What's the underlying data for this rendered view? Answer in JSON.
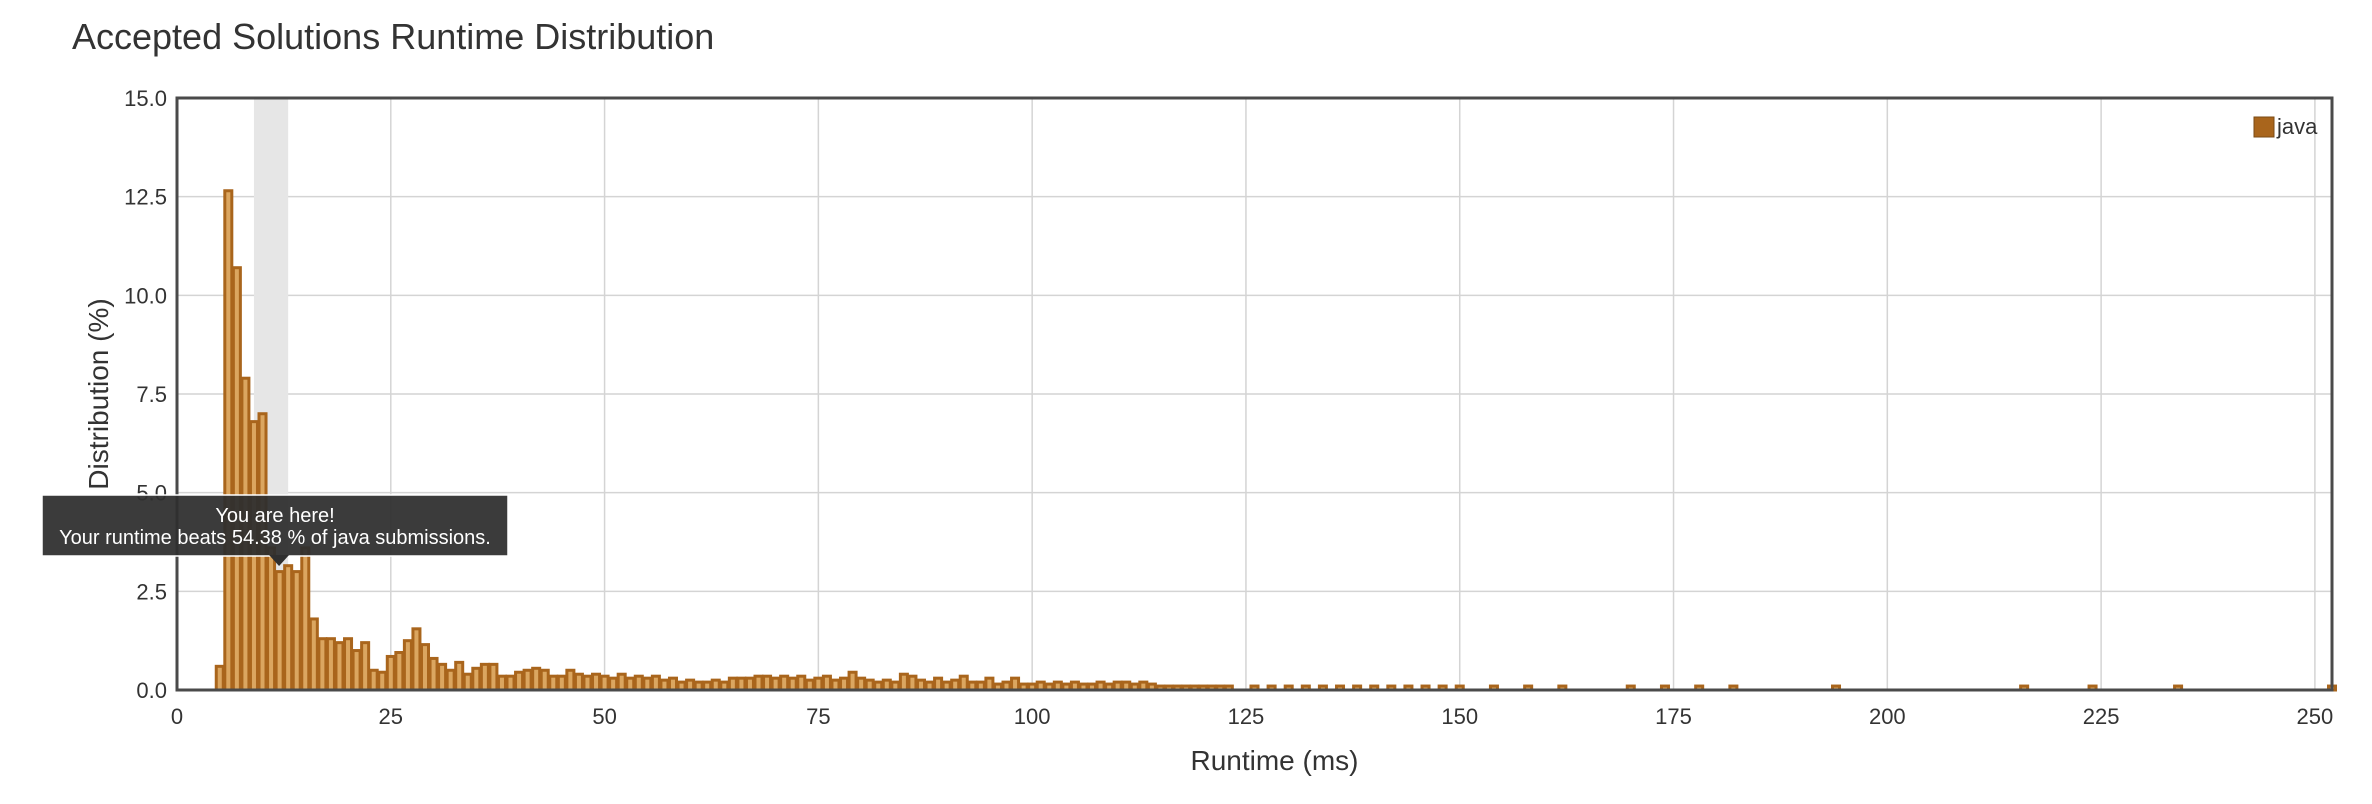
{
  "page": {
    "title": "Accepted Solutions Runtime Distribution"
  },
  "chart_data": {
    "type": "bar",
    "title": "Accepted Solutions Runtime Distribution",
    "xlabel": "Runtime (ms)",
    "ylabel": "Distribution (%)",
    "xlim": [
      0,
      252
    ],
    "ylim": [
      0,
      15
    ],
    "xticks": [
      0,
      25,
      50,
      75,
      100,
      125,
      150,
      175,
      200,
      225,
      250
    ],
    "yticks": [
      "0.0",
      "2.5",
      "5.0",
      "7.5",
      "10.0",
      "12.5",
      "15.0"
    ],
    "grid": true,
    "legend": {
      "position": "top-right",
      "entries": [
        "java"
      ]
    },
    "colors": {
      "bar_fill": "#dba660",
      "bar_stroke": "#a9651c",
      "highlight_band": "#e6e6e6",
      "grid": "#d4d4d4",
      "frame": "#4a4a4a",
      "tooltip_bg": "#2f2f2f"
    },
    "highlight": {
      "x_range": [
        9,
        13
      ]
    },
    "tooltip": {
      "line1": "You are here!",
      "line2": "Your runtime beats 54.38 % of java submissions.",
      "percent": 54.38
    },
    "series": [
      {
        "name": "java",
        "x": [
          5,
          6,
          7,
          8,
          9,
          10,
          11,
          12,
          13,
          14,
          15,
          16,
          17,
          18,
          19,
          20,
          21,
          22,
          23,
          24,
          25,
          26,
          27,
          28,
          29,
          30,
          31,
          32,
          33,
          34,
          35,
          36,
          37,
          38,
          39,
          40,
          41,
          42,
          43,
          44,
          45,
          46,
          47,
          48,
          49,
          50,
          51,
          52,
          53,
          54,
          55,
          56,
          57,
          58,
          59,
          60,
          61,
          62,
          63,
          64,
          65,
          66,
          67,
          68,
          69,
          70,
          71,
          72,
          73,
          74,
          75,
          76,
          77,
          78,
          79,
          80,
          81,
          82,
          83,
          84,
          85,
          86,
          87,
          88,
          89,
          90,
          91,
          92,
          93,
          94,
          95,
          96,
          97,
          98,
          99,
          100,
          101,
          102,
          103,
          104,
          105,
          106,
          107,
          108,
          109,
          110,
          111,
          112,
          113,
          114,
          115,
          116,
          117,
          118,
          119,
          120,
          121,
          122,
          123,
          126,
          128,
          130,
          132,
          134,
          136,
          138,
          140,
          142,
          144,
          146,
          148,
          150,
          154,
          158,
          162,
          170,
          174,
          178,
          182,
          194,
          216,
          224,
          234,
          252
        ],
        "values": [
          0.6,
          12.65,
          10.7,
          7.9,
          6.8,
          7.0,
          3.6,
          3.0,
          3.15,
          3.0,
          3.6,
          1.8,
          1.3,
          1.3,
          1.2,
          1.3,
          1.0,
          1.2,
          0.5,
          0.45,
          0.85,
          0.95,
          1.25,
          1.55,
          1.15,
          0.8,
          0.65,
          0.5,
          0.7,
          0.4,
          0.55,
          0.65,
          0.65,
          0.35,
          0.35,
          0.45,
          0.5,
          0.55,
          0.5,
          0.35,
          0.35,
          0.5,
          0.4,
          0.35,
          0.4,
          0.35,
          0.3,
          0.4,
          0.3,
          0.35,
          0.3,
          0.35,
          0.25,
          0.3,
          0.2,
          0.25,
          0.2,
          0.2,
          0.25,
          0.2,
          0.3,
          0.3,
          0.3,
          0.35,
          0.35,
          0.3,
          0.35,
          0.3,
          0.35,
          0.25,
          0.3,
          0.35,
          0.25,
          0.3,
          0.45,
          0.3,
          0.25,
          0.2,
          0.25,
          0.2,
          0.4,
          0.35,
          0.25,
          0.2,
          0.3,
          0.2,
          0.25,
          0.35,
          0.2,
          0.2,
          0.3,
          0.15,
          0.2,
          0.3,
          0.15,
          0.15,
          0.2,
          0.15,
          0.2,
          0.15,
          0.2,
          0.15,
          0.15,
          0.2,
          0.15,
          0.2,
          0.2,
          0.15,
          0.2,
          0.15,
          0.1,
          0.1,
          0.1,
          0.1,
          0.1,
          0.1,
          0.1,
          0.1,
          0.1,
          0.1,
          0.1,
          0.1,
          0.1,
          0.1,
          0.1,
          0.1,
          0.1,
          0.1,
          0.1,
          0.1,
          0.1,
          0.1,
          0.1,
          0.1,
          0.1,
          0.1,
          0.1,
          0.1,
          0.1,
          0.1,
          0.1,
          0.1,
          0.1,
          0.1
        ]
      }
    ]
  }
}
